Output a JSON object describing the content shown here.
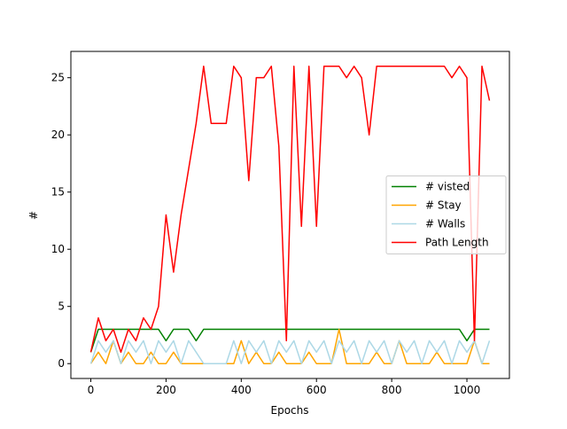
{
  "chart_data": {
    "type": "line",
    "x_label": "Epochs",
    "y_label": "#",
    "x": [
      0,
      20,
      40,
      60,
      80,
      100,
      120,
      140,
      160,
      180,
      200,
      220,
      240,
      260,
      280,
      300,
      320,
      340,
      360,
      380,
      400,
      420,
      440,
      460,
      480,
      500,
      520,
      540,
      560,
      580,
      600,
      620,
      640,
      660,
      680,
      700,
      720,
      740,
      760,
      780,
      800,
      820,
      840,
      860,
      880,
      900,
      920,
      940,
      960,
      980,
      1000,
      1020,
      1040,
      1060
    ],
    "series": [
      {
        "name": "# visted",
        "color": "#008000",
        "values": [
          1,
          3,
          3,
          3,
          3,
          3,
          3,
          3,
          3,
          3,
          2,
          3,
          3,
          3,
          2,
          3,
          3,
          3,
          3,
          3,
          3,
          3,
          3,
          3,
          3,
          3,
          3,
          3,
          3,
          3,
          3,
          3,
          3,
          3,
          3,
          3,
          3,
          3,
          3,
          3,
          3,
          3,
          3,
          3,
          3,
          3,
          3,
          3,
          3,
          3,
          2,
          3,
          3,
          3
        ]
      },
      {
        "name": "# Stay",
        "color": "#ffa500",
        "values": [
          0,
          1,
          0,
          2,
          0,
          1,
          0,
          0,
          1,
          0,
          0,
          1,
          0,
          0,
          0,
          0,
          0,
          0,
          0,
          0,
          2,
          0,
          1,
          0,
          0,
          1,
          0,
          0,
          0,
          1,
          0,
          0,
          0,
          3,
          0,
          0,
          0,
          0,
          1,
          0,
          0,
          2,
          0,
          0,
          0,
          0,
          1,
          0,
          0,
          0,
          0,
          2,
          0,
          0
        ]
      },
      {
        "name": "# Walls",
        "color": "#add8e6",
        "values": [
          0,
          2,
          1,
          2,
          0,
          2,
          1,
          2,
          0,
          2,
          1,
          2,
          0,
          2,
          1,
          0,
          0,
          0,
          0,
          2,
          0,
          2,
          1,
          2,
          0,
          2,
          1,
          2,
          0,
          2,
          1,
          2,
          0,
          2,
          1,
          2,
          0,
          2,
          1,
          2,
          0,
          2,
          1,
          2,
          0,
          2,
          1,
          2,
          0,
          2,
          1,
          2,
          0,
          2
        ]
      },
      {
        "name": "Path Length",
        "color": "#ff0000",
        "values": [
          1,
          4,
          2,
          3,
          1,
          3,
          2,
          4,
          3,
          5,
          13,
          8,
          13,
          17,
          21,
          26,
          21,
          21,
          21,
          26,
          25,
          16,
          25,
          25,
          26,
          19,
          2,
          26,
          12,
          26,
          12,
          26,
          26,
          26,
          25,
          26,
          25,
          20,
          26,
          26,
          26,
          26,
          26,
          26,
          26,
          26,
          26,
          26,
          25,
          26,
          25,
          2,
          26,
          23
        ]
      }
    ],
    "xlim": [
      -53,
      1113
    ],
    "ylim": [
      -1.3,
      27.3
    ],
    "xticks": [
      0,
      200,
      400,
      600,
      800,
      1000
    ],
    "yticks": [
      0,
      5,
      10,
      15,
      20,
      25
    ],
    "grid": false,
    "legend": "center right"
  }
}
